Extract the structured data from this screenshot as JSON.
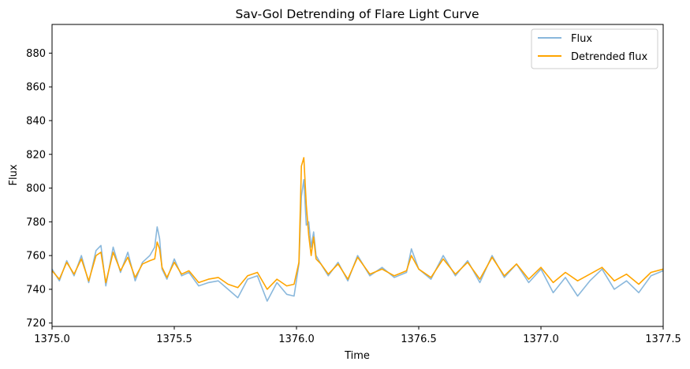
{
  "chart_data": {
    "type": "line",
    "title": "Sav-Gol Detrending of Flare Light Curve",
    "xlabel": "Time",
    "ylabel": "Flux",
    "xlim": [
      1375.0,
      1377.5
    ],
    "ylim": [
      718,
      897
    ],
    "xticks": [
      1375.0,
      1375.5,
      1376.0,
      1376.5,
      1377.0,
      1377.5
    ],
    "xtick_labels": [
      "1375.0",
      "1375.5",
      "1376.0",
      "1376.5",
      "1377.0",
      "1377.5"
    ],
    "yticks": [
      720,
      740,
      760,
      780,
      800,
      820,
      840,
      860,
      880
    ],
    "ytick_labels": [
      "720",
      "740",
      "760",
      "780",
      "800",
      "820",
      "840",
      "860",
      "880"
    ],
    "grid": false,
    "legend_position": "top-right",
    "series": [
      {
        "name": "Flux",
        "color": "#8ab8dc",
        "x": [
          1375.0,
          1375.03,
          1375.06,
          1375.09,
          1375.12,
          1375.15,
          1375.18,
          1375.2,
          1375.22,
          1375.25,
          1375.28,
          1375.31,
          1375.34,
          1375.37,
          1375.4,
          1375.42,
          1375.43,
          1375.44,
          1375.45,
          1375.47,
          1375.5,
          1375.53,
          1375.56,
          1375.6,
          1375.64,
          1375.68,
          1375.72,
          1375.76,
          1375.8,
          1375.84,
          1375.88,
          1375.92,
          1375.96,
          1375.99,
          1376.01,
          1376.02,
          1376.03,
          1376.04,
          1376.05,
          1376.06,
          1376.07,
          1376.08,
          1376.1,
          1376.13,
          1376.17,
          1376.21,
          1376.25,
          1376.3,
          1376.35,
          1376.4,
          1376.45,
          1376.47,
          1376.5,
          1376.55,
          1376.6,
          1376.65,
          1376.7,
          1376.75,
          1376.8,
          1376.85,
          1376.9,
          1376.95,
          1377.0,
          1377.05,
          1377.1,
          1377.15,
          1377.2,
          1377.25,
          1377.3,
          1377.35,
          1377.4,
          1377.45,
          1377.5
        ],
        "values": [
          752,
          745,
          757,
          748,
          760,
          744,
          763,
          766,
          742,
          765,
          750,
          762,
          745,
          756,
          760,
          765,
          777,
          770,
          752,
          746,
          758,
          748,
          750,
          742,
          744,
          745,
          740,
          735,
          746,
          748,
          733,
          744,
          737,
          736,
          755,
          795,
          805,
          778,
          780,
          765,
          774,
          760,
          755,
          748,
          756,
          745,
          760,
          748,
          753,
          747,
          750,
          764,
          752,
          746,
          760,
          748,
          757,
          744,
          760,
          747,
          755,
          744,
          752,
          738,
          747,
          736,
          745,
          752,
          740,
          745,
          738,
          748,
          751
        ]
      },
      {
        "name": "Detrended flux",
        "color": "#ffa500",
        "x": [
          1375.0,
          1375.03,
          1375.06,
          1375.09,
          1375.12,
          1375.15,
          1375.18,
          1375.2,
          1375.22,
          1375.25,
          1375.28,
          1375.31,
          1375.34,
          1375.37,
          1375.4,
          1375.42,
          1375.43,
          1375.44,
          1375.45,
          1375.47,
          1375.5,
          1375.53,
          1375.56,
          1375.6,
          1375.64,
          1375.68,
          1375.72,
          1375.76,
          1375.8,
          1375.84,
          1375.88,
          1375.92,
          1375.96,
          1375.99,
          1376.01,
          1376.02,
          1376.03,
          1376.04,
          1376.05,
          1376.06,
          1376.07,
          1376.08,
          1376.1,
          1376.13,
          1376.17,
          1376.21,
          1376.25,
          1376.3,
          1376.35,
          1376.4,
          1376.45,
          1376.47,
          1376.5,
          1376.55,
          1376.6,
          1376.65,
          1376.7,
          1376.75,
          1376.8,
          1376.85,
          1376.9,
          1376.95,
          1377.0,
          1377.05,
          1377.1,
          1377.15,
          1377.2,
          1377.25,
          1377.3,
          1377.35,
          1377.4,
          1377.45,
          1377.5
        ],
        "values": [
          751,
          746,
          756,
          749,
          758,
          745,
          760,
          762,
          744,
          762,
          751,
          759,
          747,
          755,
          757,
          758,
          768,
          764,
          753,
          747,
          756,
          749,
          751,
          744,
          746,
          747,
          743,
          741,
          748,
          750,
          740,
          746,
          742,
          743,
          756,
          813,
          818,
          790,
          772,
          760,
          771,
          758,
          755,
          749,
          755,
          746,
          759,
          749,
          752,
          748,
          751,
          760,
          752,
          747,
          758,
          749,
          756,
          746,
          759,
          748,
          755,
          746,
          753,
          744,
          750,
          745,
          749,
          753,
          745,
          749,
          743,
          750,
          752
        ]
      }
    ]
  }
}
